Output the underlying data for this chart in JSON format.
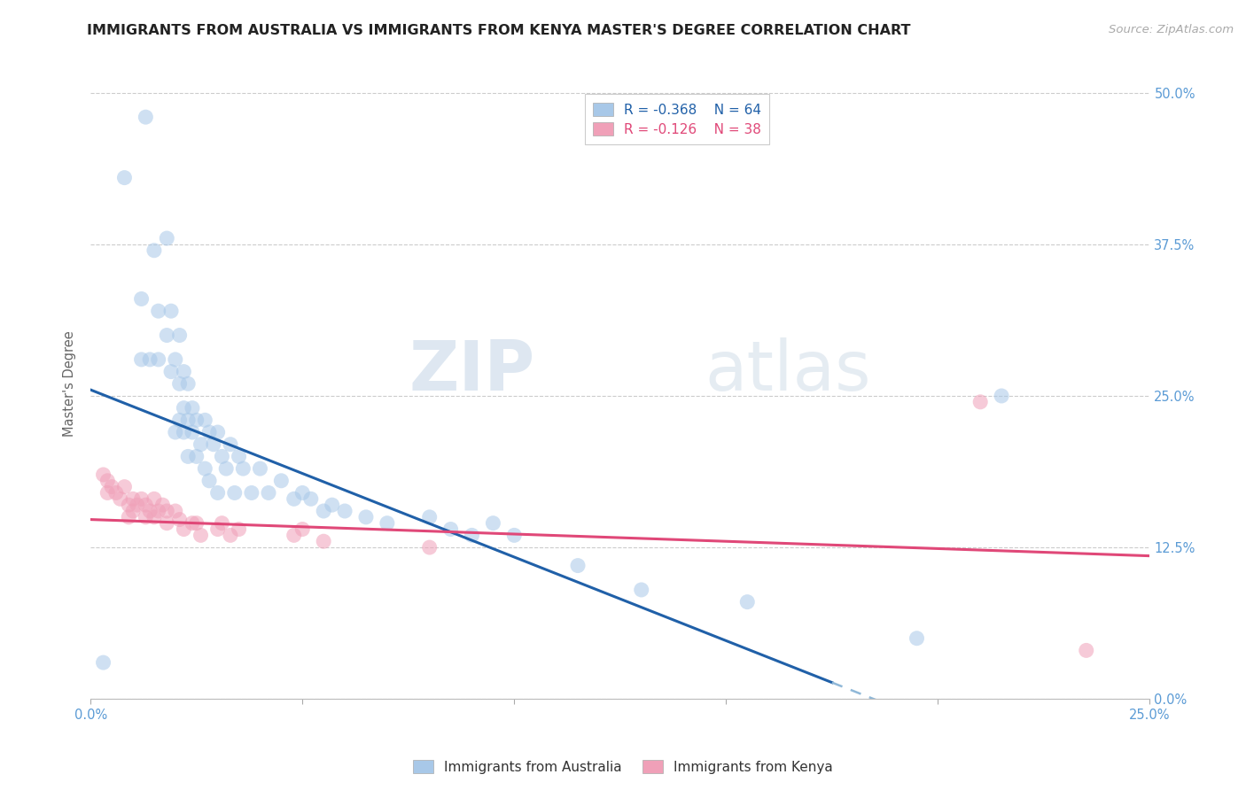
{
  "title": "IMMIGRANTS FROM AUSTRALIA VS IMMIGRANTS FROM KENYA MASTER'S DEGREE CORRELATION CHART",
  "source": "Source: ZipAtlas.com",
  "ylabel": "Master's Degree",
  "xmin": 0.0,
  "xmax": 0.25,
  "ymin": 0.0,
  "ymax": 0.52,
  "ytick_vals": [
    0.0,
    0.125,
    0.25,
    0.375,
    0.5
  ],
  "ytick_labels": [
    "0.0%",
    "12.5%",
    "25.0%",
    "37.5%",
    "50.0%"
  ],
  "xtick_vals": [
    0.0,
    0.05,
    0.1,
    0.15,
    0.2,
    0.25
  ],
  "xtick_labels": [
    "0.0%",
    "",
    "",
    "",
    "",
    "25.0%"
  ],
  "legend_r1": "R = -0.368    N = 64",
  "legend_r2": "R = -0.126    N = 38",
  "blue_color": "#a8c8e8",
  "pink_color": "#f0a0b8",
  "trendline_blue": "#2060a8",
  "trendline_pink": "#e04878",
  "trendline_blue_dashed_color": "#90b8d8",
  "background_color": "#ffffff",
  "watermark_zip": "ZIP",
  "watermark_atlas": "atlas",
  "grid_color": "#cccccc",
  "tick_color": "#5b9bd5",
  "source_color": "#aaaaaa",
  "title_color": "#222222",
  "ylabel_color": "#666666",
  "legend_text_blue": "#2060a8",
  "legend_text_pink": "#e04878",
  "aus_trendline_intercept": 0.255,
  "aus_trendline_slope": -1.38,
  "aus_trendline_solid_end": 0.175,
  "ken_trendline_intercept": 0.148,
  "ken_trendline_slope": -0.12,
  "australia_x": [
    0.003,
    0.008,
    0.012,
    0.012,
    0.013,
    0.014,
    0.015,
    0.016,
    0.016,
    0.018,
    0.018,
    0.019,
    0.019,
    0.02,
    0.02,
    0.021,
    0.021,
    0.021,
    0.022,
    0.022,
    0.022,
    0.023,
    0.023,
    0.023,
    0.024,
    0.024,
    0.025,
    0.025,
    0.026,
    0.027,
    0.027,
    0.028,
    0.028,
    0.029,
    0.03,
    0.03,
    0.031,
    0.032,
    0.033,
    0.034,
    0.035,
    0.036,
    0.038,
    0.04,
    0.042,
    0.045,
    0.048,
    0.05,
    0.052,
    0.055,
    0.057,
    0.06,
    0.065,
    0.07,
    0.08,
    0.085,
    0.09,
    0.095,
    0.1,
    0.115,
    0.13,
    0.155,
    0.195,
    0.215
  ],
  "australia_y": [
    0.03,
    0.43,
    0.33,
    0.28,
    0.48,
    0.28,
    0.37,
    0.32,
    0.28,
    0.38,
    0.3,
    0.32,
    0.27,
    0.28,
    0.22,
    0.3,
    0.26,
    0.23,
    0.27,
    0.24,
    0.22,
    0.26,
    0.23,
    0.2,
    0.24,
    0.22,
    0.23,
    0.2,
    0.21,
    0.23,
    0.19,
    0.22,
    0.18,
    0.21,
    0.22,
    0.17,
    0.2,
    0.19,
    0.21,
    0.17,
    0.2,
    0.19,
    0.17,
    0.19,
    0.17,
    0.18,
    0.165,
    0.17,
    0.165,
    0.155,
    0.16,
    0.155,
    0.15,
    0.145,
    0.15,
    0.14,
    0.135,
    0.145,
    0.135,
    0.11,
    0.09,
    0.08,
    0.05,
    0.25
  ],
  "kenya_x": [
    0.003,
    0.004,
    0.004,
    0.005,
    0.006,
    0.007,
    0.008,
    0.009,
    0.009,
    0.01,
    0.01,
    0.011,
    0.012,
    0.013,
    0.013,
    0.014,
    0.015,
    0.015,
    0.016,
    0.017,
    0.018,
    0.018,
    0.02,
    0.021,
    0.022,
    0.024,
    0.025,
    0.026,
    0.03,
    0.031,
    0.033,
    0.035,
    0.048,
    0.05,
    0.055,
    0.08,
    0.21,
    0.235
  ],
  "kenya_y": [
    0.185,
    0.18,
    0.17,
    0.175,
    0.17,
    0.165,
    0.175,
    0.16,
    0.15,
    0.165,
    0.155,
    0.16,
    0.165,
    0.16,
    0.15,
    0.155,
    0.165,
    0.15,
    0.155,
    0.16,
    0.155,
    0.145,
    0.155,
    0.148,
    0.14,
    0.145,
    0.145,
    0.135,
    0.14,
    0.145,
    0.135,
    0.14,
    0.135,
    0.14,
    0.13,
    0.125,
    0.245,
    0.04
  ],
  "marker_size": 150,
  "alpha_scatter": 0.55,
  "title_fontsize": 11.5,
  "tick_fontsize": 10.5,
  "label_fontsize": 10.5,
  "source_fontsize": 9.5,
  "legend_fontsize": 11
}
